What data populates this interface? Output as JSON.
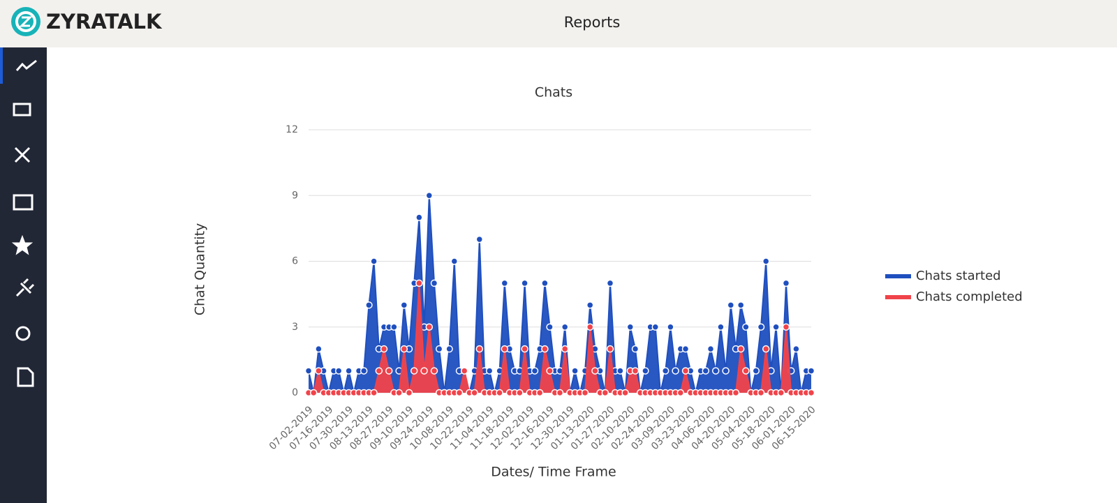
{
  "header": {
    "brand": "ZYRATALK",
    "title": "Reports"
  },
  "chart_data": {
    "type": "line",
    "title": "Chats",
    "x_label": "Dates/ Time Frame",
    "y_label": "Chat Quantity",
    "categories": [
      "07-02-2019",
      null,
      null,
      null,
      "07-16-2019",
      null,
      null,
      null,
      "07-30-2019",
      null,
      null,
      null,
      "08-13-2019",
      null,
      null,
      null,
      "08-27-2019",
      null,
      null,
      null,
      "09-10-2019",
      null,
      null,
      null,
      "09-24-2019",
      null,
      null,
      null,
      "10-08-2019",
      null,
      null,
      null,
      "10-22-2019",
      null,
      null,
      null,
      "11-04-2019",
      null,
      null,
      null,
      "11-18-2019",
      null,
      null,
      null,
      "12-02-2019",
      null,
      null,
      null,
      "12-16-2019",
      null,
      null,
      null,
      "12-30-2019",
      null,
      null,
      null,
      "01-13-2020",
      null,
      null,
      null,
      "01-27-2020",
      null,
      null,
      null,
      "02-10-2020",
      null,
      null,
      null,
      "02-24-2020",
      null,
      null,
      null,
      "03-09-2020",
      null,
      null,
      null,
      "03-23-2020",
      null,
      null,
      null,
      "04-06-2020",
      null,
      null,
      null,
      "04-20-2020",
      null,
      null,
      null,
      "05-04-2020",
      null,
      null,
      null,
      "05-18-2020",
      null,
      null,
      null,
      "06-01-2020",
      null,
      null,
      null,
      "06-15-2020"
    ],
    "series": [
      {
        "name": "Chats started",
        "color": "#1f4fbf",
        "values": [
          1,
          0,
          2,
          1,
          0,
          1,
          1,
          0,
          1,
          0,
          1,
          1,
          4,
          6,
          2,
          3,
          3,
          3,
          1,
          4,
          2,
          5,
          8,
          3,
          9,
          5,
          2,
          0,
          2,
          6,
          1,
          1,
          0,
          1,
          7,
          1,
          1,
          0,
          1,
          5,
          2,
          1,
          1,
          5,
          1,
          1,
          2,
          5,
          3,
          1,
          1,
          3,
          0,
          1,
          0,
          1,
          4,
          2,
          1,
          0,
          5,
          1,
          1,
          0,
          3,
          2,
          0,
          1,
          3,
          3,
          0,
          1,
          3,
          1,
          2,
          2,
          1,
          0,
          1,
          1,
          2,
          1,
          3,
          1,
          4,
          2,
          4,
          3,
          0,
          1,
          3,
          6,
          1,
          3,
          0,
          5,
          1,
          2,
          0,
          1,
          1
        ]
      },
      {
        "name": "Chats completed",
        "color": "#f0434a",
        "values": [
          0,
          0,
          1,
          0,
          0,
          0,
          0,
          0,
          0,
          0,
          0,
          0,
          0,
          0,
          1,
          2,
          1,
          0,
          0,
          2,
          0,
          1,
          5,
          1,
          3,
          1,
          0,
          0,
          0,
          0,
          0,
          1,
          0,
          0,
          2,
          0,
          0,
          0,
          0,
          2,
          0,
          0,
          0,
          2,
          0,
          0,
          0,
          2,
          1,
          0,
          0,
          2,
          0,
          0,
          0,
          0,
          3,
          1,
          0,
          0,
          2,
          0,
          0,
          0,
          1,
          1,
          0,
          0,
          0,
          0,
          0,
          0,
          0,
          0,
          0,
          1,
          0,
          0,
          0,
          0,
          0,
          0,
          0,
          0,
          0,
          0,
          2,
          1,
          0,
          0,
          0,
          2,
          0,
          0,
          0,
          3,
          0,
          0,
          0,
          0,
          0
        ]
      }
    ],
    "ylim": [
      0,
      12
    ],
    "yticks": [
      0,
      3,
      6,
      9,
      12
    ],
    "grid": true,
    "legend": "right"
  }
}
